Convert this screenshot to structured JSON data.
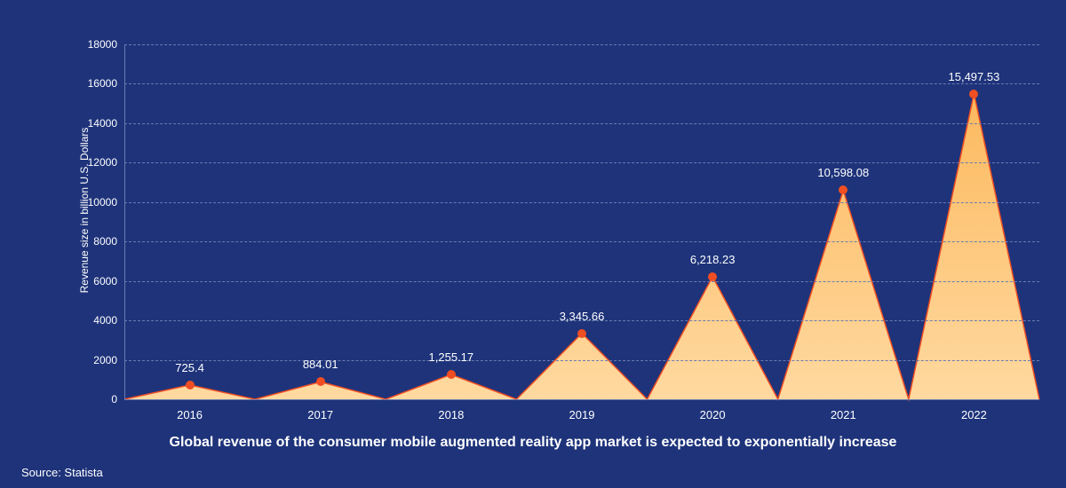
{
  "chart": {
    "type": "area",
    "background_color": "#1e337a",
    "text_color": "#ffffff",
    "grid_color": "#6a7bb0",
    "grid_dash": "4,4",
    "axis_color": "#6a7bb0",
    "area_fill_top": "#fcb95e",
    "area_fill_bottom": "#ffd9a0",
    "line_color": "#f04e23",
    "line_width": 1.5,
    "marker_color": "#f04e23",
    "marker_radius": 5,
    "y_axis_label": "Revenue size in billion U.S. Dollars",
    "y_axis_label_fontsize": 12,
    "ylim": [
      0,
      18000
    ],
    "ytick_step": 2000,
    "yticks": [
      0,
      2000,
      4000,
      6000,
      8000,
      10000,
      12000,
      14000,
      16000,
      18000
    ],
    "categories": [
      "2016",
      "2017",
      "2018",
      "2019",
      "2020",
      "2021",
      "2022"
    ],
    "values": [
      725.4,
      884.01,
      1255.17,
      3345.66,
      6218.23,
      10598.08,
      15497.53
    ],
    "value_labels": [
      "725.4",
      "884.01",
      "1,255.17",
      "3,345.66",
      "6,218.23",
      "10,598.08",
      "15,497.53"
    ],
    "label_fontsize": 13,
    "aspect_width": 1030,
    "aspect_height": 400,
    "dip_to_zero_between_points": true
  },
  "caption": "Global revenue of the consumer mobile augmented reality app market is expected to exponentially increase",
  "source": "Source: Statista"
}
